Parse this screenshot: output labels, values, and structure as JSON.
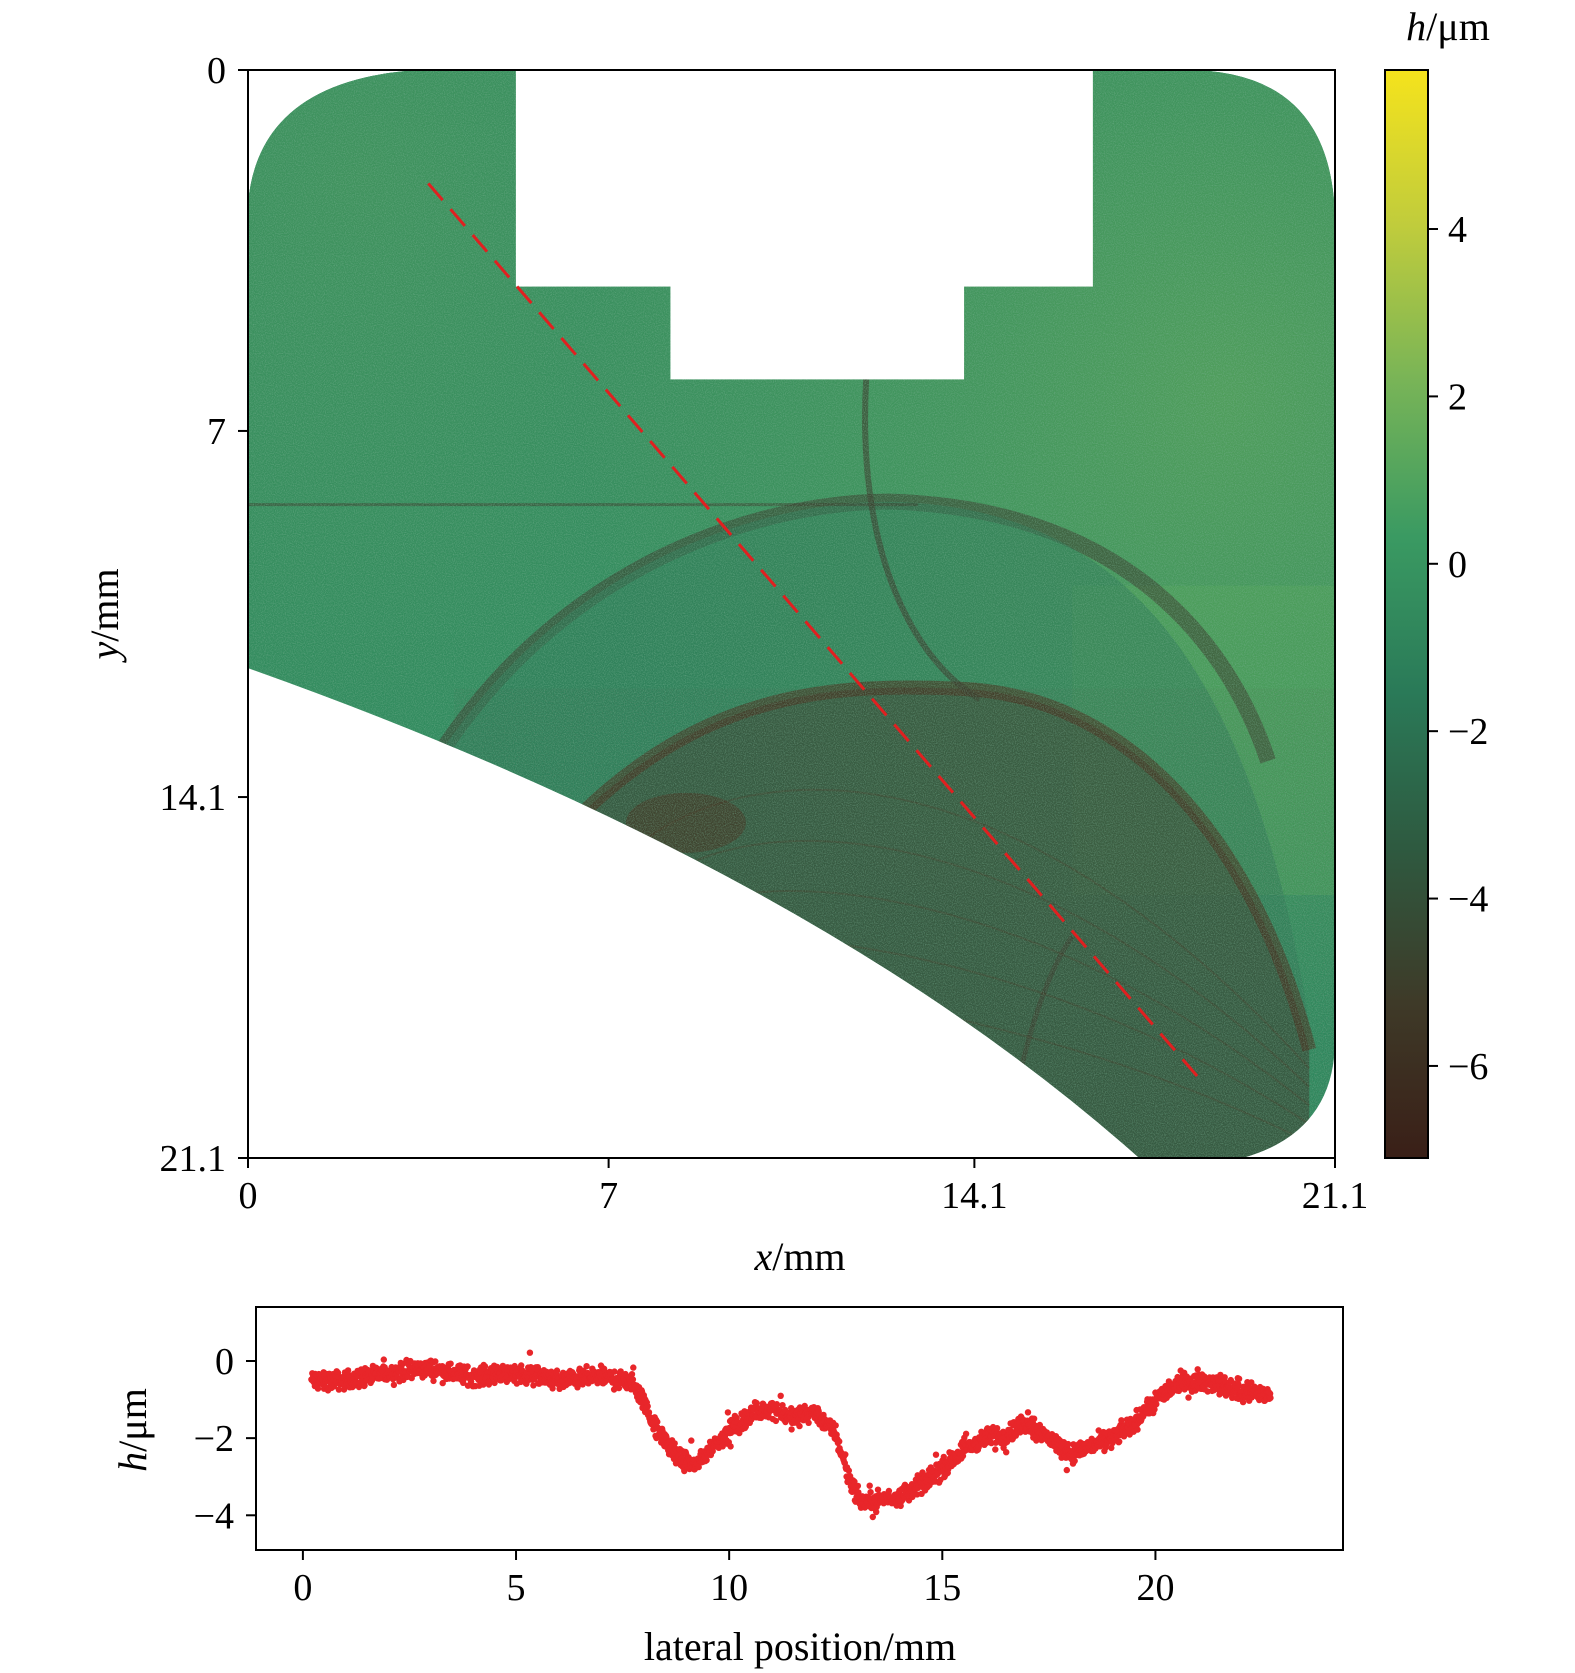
{
  "chart_data": [
    {
      "type": "heatmap",
      "title": "",
      "xlabel": {
        "var": "x",
        "unit": "/mm"
      },
      "ylabel": {
        "var": "y",
        "unit": "/mm"
      },
      "xlim": [
        0,
        21.1
      ],
      "ylim": [
        0,
        21.1
      ],
      "y_inverted": true,
      "xticks": [
        {
          "value": 0,
          "label": "0"
        },
        {
          "value": 7,
          "label": "7"
        },
        {
          "value": 14.1,
          "label": "14.1"
        },
        {
          "value": 21.1,
          "label": "21.1"
        }
      ],
      "yticks": [
        {
          "value": 0,
          "label": "0"
        },
        {
          "value": 7,
          "label": "7"
        },
        {
          "value": 14.1,
          "label": "14.1"
        },
        {
          "value": 21.1,
          "label": "21.1"
        }
      ],
      "colorbar": {
        "label": {
          "var": "h",
          "unit": "/μm"
        },
        "range": [
          -7.1,
          5.9
        ],
        "ticks": [
          {
            "value": 4,
            "label": "4"
          },
          {
            "value": 2,
            "label": "2"
          },
          {
            "value": 0,
            "label": "0"
          },
          {
            "value": -2,
            "label": "−2"
          },
          {
            "value": -4,
            "label": "−4"
          },
          {
            "value": -6,
            "label": "−6"
          }
        ],
        "colormap": [
          "#3a1f17",
          "#3e3a28",
          "#2e5a40",
          "#2a7a58",
          "#3a9a62",
          "#78b457",
          "#c0cc3c",
          "#f5e31c"
        ]
      },
      "surface": {
        "base_color": "#2f8a5f",
        "light_color": "#5aa85a",
        "dark_color": "#3b3b2c",
        "darkest_color": "#4a2818"
      },
      "masked_region": [
        {
          "x": [
            5.2,
            16.4
          ],
          "y": [
            0,
            4.2
          ]
        },
        {
          "x": [
            8.2,
            13.9
          ],
          "y": [
            4.2,
            6.0
          ]
        }
      ],
      "profile_line": {
        "color": "#e02020",
        "style": "dashed",
        "start": {
          "x": 3.5,
          "y": 2.2
        },
        "end": {
          "x": 18.5,
          "y": 19.6
        }
      }
    },
    {
      "type": "scatter",
      "title": "",
      "xlabel": "lateral position/mm",
      "ylabel": {
        "var": "h",
        "unit": "/μm"
      },
      "xlim": [
        -1.1,
        24.4
      ],
      "ylim": [
        -4.9,
        1.4
      ],
      "xticks": [
        {
          "value": 0,
          "label": "0"
        },
        {
          "value": 5,
          "label": "5"
        },
        {
          "value": 10,
          "label": "10"
        },
        {
          "value": 15,
          "label": "15"
        },
        {
          "value": 20,
          "label": "20"
        }
      ],
      "yticks": [
        {
          "value": 0,
          "label": "0"
        },
        {
          "value": -2,
          "label": "−2"
        },
        {
          "value": -4,
          "label": "−4"
        }
      ],
      "color": "#e8262a",
      "profile": {
        "x": [
          0.2,
          1,
          2,
          3,
          4,
          5,
          6,
          7,
          7.8,
          8.3,
          8.8,
          9.2,
          9.6,
          10,
          10.5,
          11,
          11.5,
          12,
          12.5,
          12.8,
          13.1,
          13.5,
          14,
          14.5,
          15,
          15.5,
          16,
          16.5,
          17,
          17.5,
          18,
          18.5,
          19,
          19.5,
          20,
          20.5,
          21,
          21.5,
          22,
          22.7
        ],
        "h": [
          -0.5,
          -0.5,
          -0.3,
          -0.2,
          -0.4,
          -0.3,
          -0.5,
          -0.4,
          -0.6,
          -1.8,
          -2.5,
          -2.7,
          -2.2,
          -1.8,
          -1.4,
          -1.2,
          -1.5,
          -1.3,
          -1.9,
          -3.0,
          -3.7,
          -3.6,
          -3.5,
          -3.2,
          -2.8,
          -2.3,
          -2.0,
          -1.9,
          -1.6,
          -2.0,
          -2.4,
          -2.2,
          -2.0,
          -1.6,
          -1.0,
          -0.6,
          -0.5,
          -0.6,
          -0.8,
          -0.9
        ]
      },
      "spread": 0.35,
      "n_points": 2200
    }
  ]
}
